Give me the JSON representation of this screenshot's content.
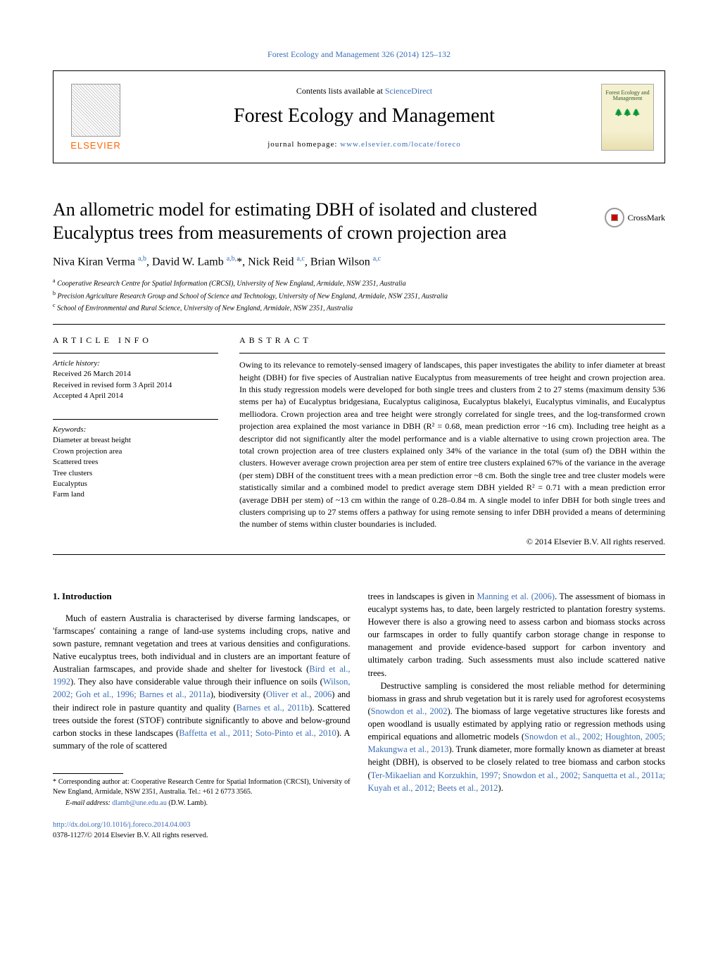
{
  "header": {
    "citation_link": "Forest Ecology and Management 326 (2014) 125–132",
    "contents_text": "Contents lists available at ",
    "contents_link": "ScienceDirect",
    "journal_title": "Forest Ecology and Management",
    "homepage_prefix": "journal homepage: ",
    "homepage_url": "www.elsevier.com/locate/foreco",
    "elsevier_label": "ELSEVIER",
    "cover_title": "Forest Ecology and Management",
    "crossmark_label": "CrossMark"
  },
  "article": {
    "title": "An allometric model for estimating DBH of isolated and clustered Eucalyptus trees from measurements of crown projection area",
    "authors_html": "Niva Kiran Verma <sup>a,b</sup>, David W. Lamb <sup>a,b,</sup>*, Nick Reid <sup>a,c</sup>, Brian Wilson <sup>a,c</sup>",
    "affiliations": [
      {
        "sup": "a",
        "text": "Cooperative Research Centre for Spatial Information (CRCSI), University of New England, Armidale, NSW 2351, Australia"
      },
      {
        "sup": "b",
        "text": "Precision Agriculture Research Group and School of Science and Technology, University of New England, Armidale, NSW 2351, Australia"
      },
      {
        "sup": "c",
        "text": "School of Environmental and Rural Science, University of New England, Armidale, NSW 2351, Australia"
      }
    ]
  },
  "info": {
    "section_label": "article info",
    "history_label": "Article history:",
    "history": [
      "Received 26 March 2014",
      "Received in revised form 3 April 2014",
      "Accepted 4 April 2014"
    ],
    "keywords_label": "Keywords:",
    "keywords": [
      "Diameter at breast height",
      "Crown projection area",
      "Scattered trees",
      "Tree clusters",
      "Eucalyptus",
      "Farm land"
    ]
  },
  "abstract": {
    "section_label": "abstract",
    "text": "Owing to its relevance to remotely-sensed imagery of landscapes, this paper investigates the ability to infer diameter at breast height (DBH) for five species of Australian native Eucalyptus from measurements of tree height and crown projection area. In this study regression models were developed for both single trees and clusters from 2 to 27 stems (maximum density 536 stems per ha) of Eucalyptus bridgesiana, Eucalyptus caliginosa, Eucalyptus blakelyi, Eucalyptus viminalis, and Eucalyptus melliodora. Crown projection area and tree height were strongly correlated for single trees, and the log-transformed crown projection area explained the most variance in DBH (R² = 0.68, mean prediction error ~16 cm). Including tree height as a descriptor did not significantly alter the model performance and is a viable alternative to using crown projection area. The total crown projection area of tree clusters explained only 34% of the variance in the total (sum of) the DBH within the clusters. However average crown projection area per stem of entire tree clusters explained 67% of the variance in the average (per stem) DBH of the constituent trees with a mean prediction error ~8 cm. Both the single tree and tree cluster models were statistically similar and a combined model to predict average stem DBH yielded R² = 0.71 with a mean prediction error (average DBH per stem) of ~13 cm within the range of 0.28–0.84 m. A single model to infer DBH for both single trees and clusters comprising up to 27 stems offers a pathway for using remote sensing to infer DBH provided a means of determining the number of stems within cluster boundaries is included.",
    "copyright": "© 2014 Elsevier B.V. All rights reserved."
  },
  "body": {
    "intro_heading": "1. Introduction",
    "col1_p1_a": "Much of eastern Australia is characterised by diverse farming landscapes, or 'farmscapes' containing a range of land-use systems including crops, native and sown pasture, remnant vegetation and trees at various densities and configurations. Native eucalyptus trees, both individual and in clusters are an important feature of Australian farmscapes, and provide shade and shelter for livestock (",
    "col1_ref1": "Bird et al., 1992",
    "col1_p1_b": "). They also have considerable value through their influence on soils (",
    "col1_ref2": "Wilson, 2002; Goh et al., 1996; Barnes et al., 2011a",
    "col1_p1_c": "), biodiversity (",
    "col1_ref3": "Oliver et al., 2006",
    "col1_p1_d": ") and their indirect role in pasture quantity and quality (",
    "col1_ref4": "Barnes et al., 2011b",
    "col1_p1_e": "). Scattered trees outside the forest (STOF) contribute significantly to above and below-ground carbon stocks in these landscapes (",
    "col1_ref5": "Baffetta et al., 2011; Soto-Pinto et al., 2010",
    "col1_p1_f": "). A summary of the role of scattered",
    "col2_p1_a": "trees in landscapes is given in ",
    "col2_ref1": "Manning et al. (2006)",
    "col2_p1_b": ". The assessment of biomass in eucalypt systems has, to date, been largely restricted to plantation forestry systems. However there is also a growing need to assess carbon and biomass stocks across our farmscapes in order to fully quantify carbon storage change in response to management and provide evidence-based support for carbon inventory and ultimately carbon trading. Such assessments must also include scattered native trees.",
    "col2_p2_a": "Destructive sampling is considered the most reliable method for determining biomass in grass and shrub vegetation but it is rarely used for agroforest ecosystems (",
    "col2_ref2": "Snowdon et al., 2002",
    "col2_p2_b": "). The biomass of large vegetative structures like forests and open woodland is usually estimated by applying ratio or regression methods using empirical equations and allometric models (",
    "col2_ref3": "Snowdon et al., 2002; Houghton, 2005; Makungwa et al., 2013",
    "col2_p2_c": "). Trunk diameter, more formally known as diameter at breast height (DBH), is observed to be closely related to tree biomass and carbon stocks (",
    "col2_ref4": "Ter-Mikaelian and Korzukhin, 1997; Snowdon et al., 2002; Sanquetta et al., 2011a; Kuyah et al., 2012; Beets et al., 2012",
    "col2_p2_d": ")."
  },
  "footer": {
    "corresponding": "* Corresponding author at: Cooperative Research Centre for Spatial Information (CRCSI), University of New England, Armidale, NSW 2351, Australia. Tel.: +61 2 6773 3565.",
    "email_label": "E-mail address: ",
    "email": "dlamb@une.edu.au",
    "email_person": " (D.W. Lamb).",
    "doi": "http://dx.doi.org/10.1016/j.foreco.2014.04.003",
    "copyright": "0378-1127/© 2014 Elsevier B.V. All rights reserved."
  },
  "colors": {
    "link": "#3a6db5",
    "elsevier_orange": "#ff6600",
    "cover_green": "#2a5a28"
  }
}
